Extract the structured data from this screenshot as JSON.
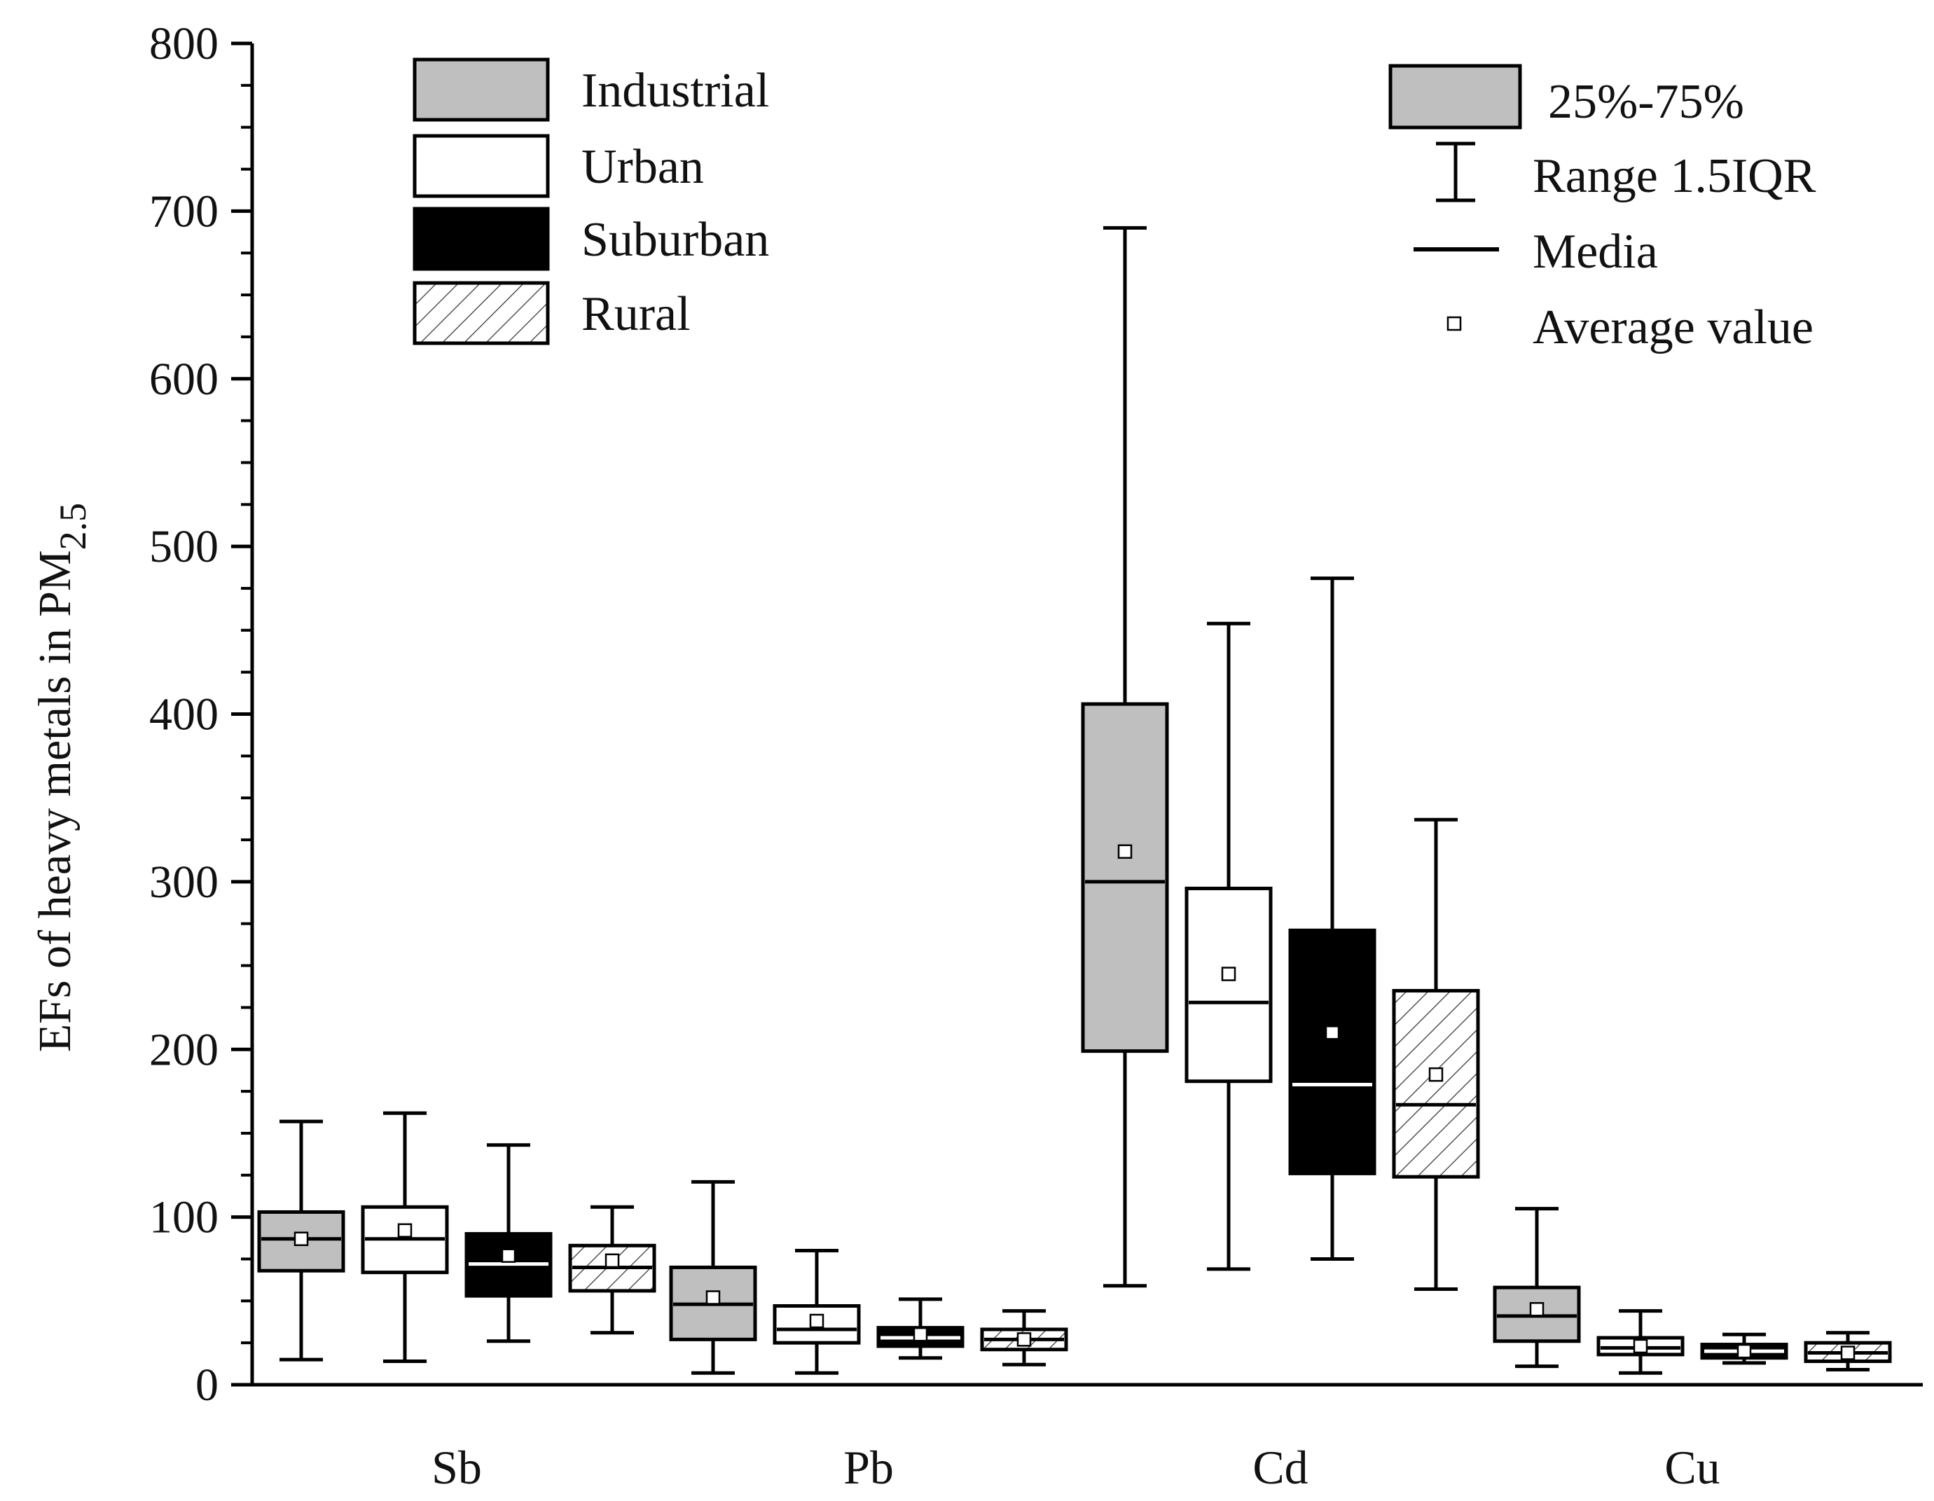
{
  "chart_data": {
    "type": "box",
    "title": "",
    "xlabel": "",
    "ylabel": {
      "main": "EFs of heavy metals in PM",
      "sub": "2.5"
    },
    "ylim": [
      0,
      800
    ],
    "yticks": [
      0,
      100,
      200,
      300,
      400,
      500,
      600,
      700,
      800
    ],
    "grid": false,
    "categories": [
      "Sb",
      "Pb",
      "Cd",
      "Cu"
    ],
    "series": [
      {
        "name": "Industrial",
        "fill": "#bfbfbf",
        "pattern": "none",
        "median_color": "#000000",
        "boxes": [
          {
            "category": "Sb",
            "whisker_low": 15,
            "q1": 68,
            "median": 87,
            "q3": 103,
            "whisker_high": 157,
            "mean": 87
          },
          {
            "category": "Pb",
            "whisker_low": 7,
            "q1": 27,
            "median": 48,
            "q3": 70,
            "whisker_high": 121,
            "mean": 52
          },
          {
            "category": "Cd",
            "whisker_low": 59,
            "q1": 199,
            "median": 300,
            "q3": 406,
            "whisker_high": 690,
            "mean": 318
          },
          {
            "category": "Cu",
            "whisker_low": 11,
            "q1": 26,
            "median": 41,
            "q3": 58,
            "whisker_high": 105,
            "mean": 45
          }
        ]
      },
      {
        "name": "Urban",
        "fill": "#ffffff",
        "pattern": "none",
        "median_color": "#000000",
        "boxes": [
          {
            "category": "Sb",
            "whisker_low": 14,
            "q1": 67,
            "median": 87,
            "q3": 106,
            "whisker_high": 162,
            "mean": 92
          },
          {
            "category": "Pb",
            "whisker_low": 7,
            "q1": 25,
            "median": 33,
            "q3": 47,
            "whisker_high": 80,
            "mean": 38
          },
          {
            "category": "Cd",
            "whisker_low": 69,
            "q1": 181,
            "median": 228,
            "q3": 296,
            "whisker_high": 454,
            "mean": 245
          },
          {
            "category": "Cu",
            "whisker_low": 7,
            "q1": 18,
            "median": 22,
            "q3": 28,
            "whisker_high": 44,
            "mean": 23
          }
        ]
      },
      {
        "name": "Suburban",
        "fill": "#000000",
        "pattern": "none",
        "median_color": "#ffffff",
        "boxes": [
          {
            "category": "Sb",
            "whisker_low": 26,
            "q1": 53,
            "median": 72,
            "q3": 90,
            "whisker_high": 143,
            "mean": 77
          },
          {
            "category": "Pb",
            "whisker_low": 16,
            "q1": 23,
            "median": 28,
            "q3": 34,
            "whisker_high": 51,
            "mean": 30
          },
          {
            "category": "Cd",
            "whisker_low": 75,
            "q1": 126,
            "median": 179,
            "q3": 271,
            "whisker_high": 481,
            "mean": 210
          },
          {
            "category": "Cu",
            "whisker_low": 13,
            "q1": 16,
            "median": 20,
            "q3": 24,
            "whisker_high": 30,
            "mean": 20
          }
        ]
      },
      {
        "name": "Rural",
        "fill": "#ffffff",
        "pattern": "hatch",
        "median_color": "#000000",
        "boxes": [
          {
            "category": "Sb",
            "whisker_low": 31,
            "q1": 56,
            "median": 70,
            "q3": 83,
            "whisker_high": 106,
            "mean": 74
          },
          {
            "category": "Pb",
            "whisker_low": 12,
            "q1": 21,
            "median": 27,
            "q3": 33,
            "whisker_high": 44,
            "mean": 27
          },
          {
            "category": "Cd",
            "whisker_low": 57,
            "q1": 124,
            "median": 167,
            "q3": 235,
            "whisker_high": 337,
            "mean": 185
          },
          {
            "category": "Cu",
            "whisker_low": 9,
            "q1": 14,
            "median": 19,
            "q3": 25,
            "whisker_high": 31,
            "mean": 19
          }
        ]
      }
    ],
    "legend_groups": [
      "Industrial",
      "Urban",
      "Suburban",
      "Rural"
    ],
    "legend_stats": {
      "box": "25%-75%",
      "range": "Range 1.5IQR",
      "median": "Media",
      "mean": "Average value"
    },
    "legend_placement": "top-left (groups) and top-right (statistics)"
  }
}
